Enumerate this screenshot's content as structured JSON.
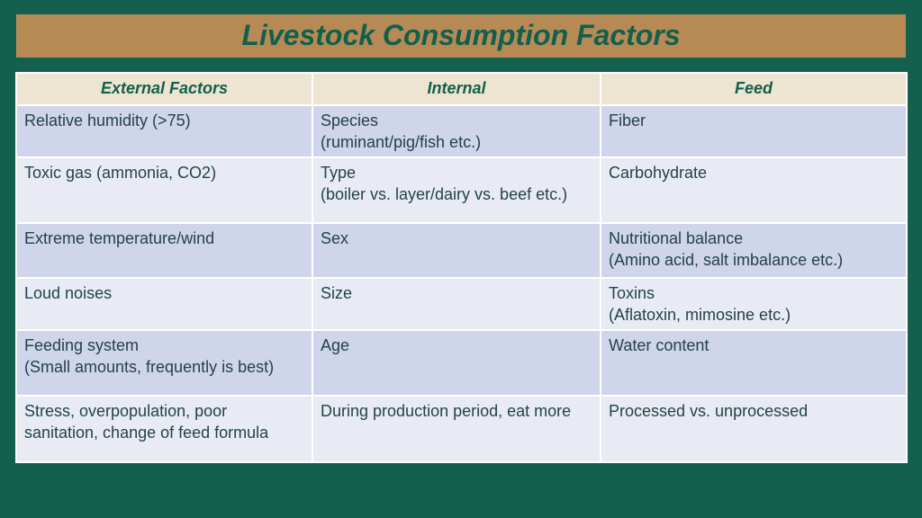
{
  "title": "Livestock Consumption Factors",
  "headers": [
    "External Factors",
    "Internal",
    "Feed"
  ],
  "rows": [
    [
      "Relative humidity (>75)",
      "Species\n(ruminant/pig/fish etc.)",
      "Fiber"
    ],
    [
      "Toxic gas (ammonia, CO2)",
      "Type\n(boiler vs. layer/dairy vs. beef etc.)",
      "Carbohydrate"
    ],
    [
      "Extreme temperature/wind",
      "Sex",
      "Nutritional balance\n(Amino acid, salt imbalance etc.)"
    ],
    [
      "Loud noises",
      "Size",
      "Toxins\n(Aflatoxin, mimosine etc.)"
    ],
    [
      "Feeding system\n(Small amounts, frequently is best)",
      "Age",
      "Water content"
    ],
    [
      "Stress, overpopulation, poor sanitation, change of feed formula",
      "During production period, eat more",
      "Processed vs. unprocessed"
    ]
  ]
}
